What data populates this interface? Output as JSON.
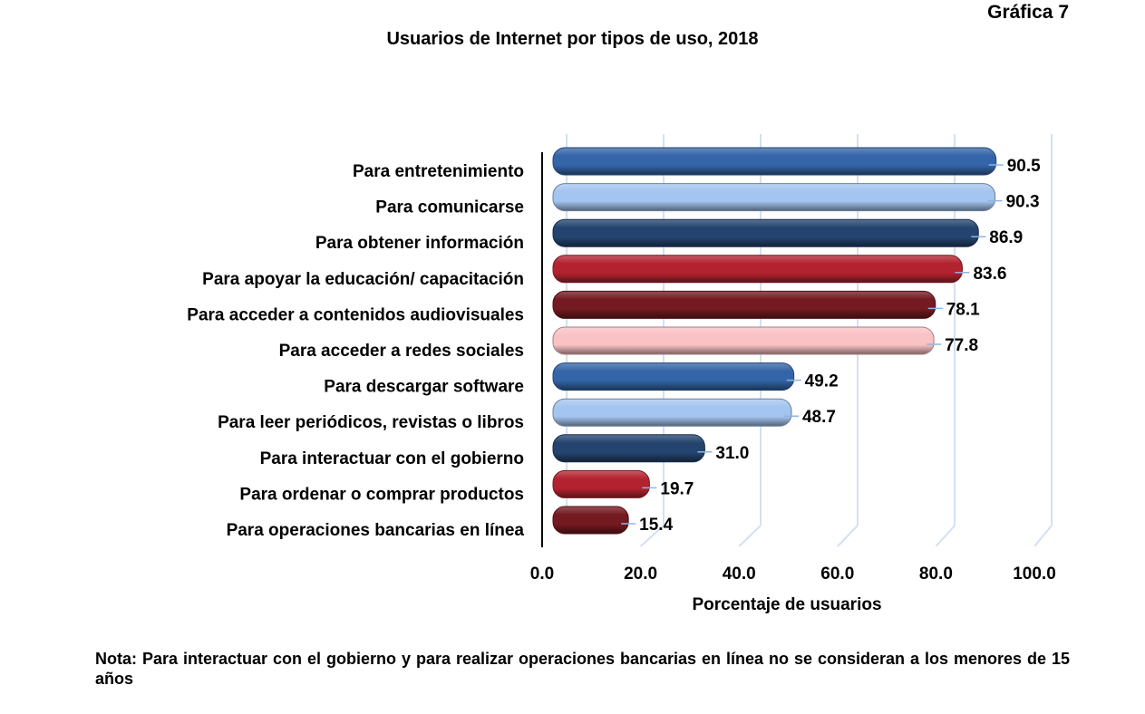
{
  "figure_label": "Gráfica 7",
  "note": "Nota: Para interactuar con el gobierno y para realizar operaciones bancarias en línea no se consideran a los menores de 15 años",
  "chart_data": {
    "type": "bar",
    "orientation": "horizontal",
    "title": "Usuarios de Internet por tipos de uso, 2018",
    "xlabel": "Porcentaje de usuarios",
    "ylabel": "",
    "xlim": [
      0,
      100
    ],
    "xticks": [
      "0.0",
      "20.0",
      "40.0",
      "60.0",
      "80.0",
      "100.0"
    ],
    "grid": true,
    "categories": [
      "Para entretenimiento",
      "Para comunicarse",
      "Para obtener información",
      "Para apoyar la educación/ capacitación",
      "Para acceder a contenidos audiovisuales",
      "Para acceder a redes sociales",
      "Para descargar software",
      "Para leer periódicos, revistas o libros",
      "Para interactuar con el gobierno",
      "Para ordenar o comprar productos",
      "Para operaciones bancarias en línea"
    ],
    "values": [
      90.5,
      90.3,
      86.9,
      83.6,
      78.1,
      77.8,
      49.2,
      48.7,
      31.0,
      19.7,
      15.4
    ],
    "value_labels": [
      "90.5",
      "90.3",
      "86.9",
      "83.6",
      "78.1",
      "77.8",
      "49.2",
      "48.7",
      "31.0",
      "19.7",
      "15.4"
    ],
    "colors": [
      "#3465a8",
      "#a4c5ef",
      "#24446f",
      "#b3232f",
      "#741a20",
      "#f9c2c5",
      "#3465a8",
      "#a4c5ef",
      "#24446f",
      "#b3232f",
      "#741a20"
    ],
    "gridline_color": "#d3e0f2"
  }
}
